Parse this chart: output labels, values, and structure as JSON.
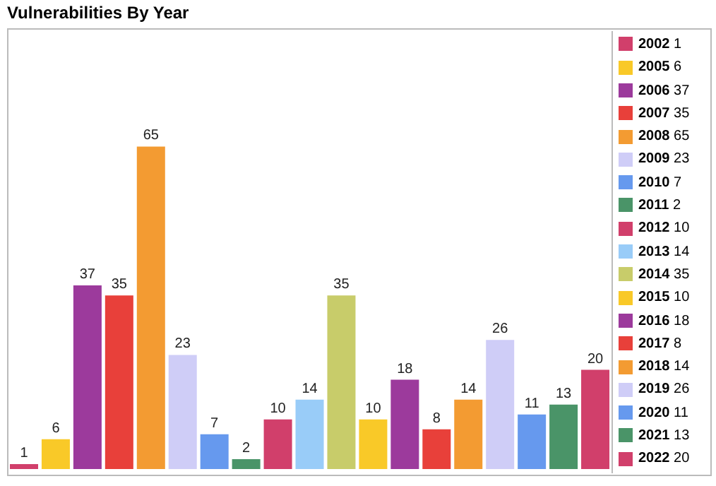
{
  "chart_data": {
    "type": "bar",
    "title": "Vulnerabilities By Year",
    "stacked": true,
    "data_labels": true,
    "legend": "right",
    "categories": [
      null,
      null,
      null,
      null,
      null,
      null,
      null,
      null,
      null,
      null,
      null,
      null,
      null,
      null,
      null,
      null,
      null,
      null,
      null
    ],
    "series": [
      {
        "name": "2002 1",
        "color": "#d13f6b",
        "values": [
          1,
          null,
          null,
          null,
          null,
          null,
          null,
          null,
          null,
          null,
          null,
          null,
          null,
          null,
          null,
          null,
          null,
          null,
          null
        ]
      },
      {
        "name": "2005 6",
        "color": "#f9c928",
        "values": [
          null,
          6,
          null,
          null,
          null,
          null,
          null,
          null,
          null,
          null,
          null,
          null,
          null,
          null,
          null,
          null,
          null,
          null,
          null
        ]
      },
      {
        "name": "2006 37",
        "color": "#9c3a9c",
        "values": [
          null,
          null,
          37,
          null,
          null,
          null,
          null,
          null,
          null,
          null,
          null,
          null,
          null,
          null,
          null,
          null,
          null,
          null,
          null
        ]
      },
      {
        "name": "2007 35",
        "color": "#e8403a",
        "values": [
          null,
          null,
          null,
          35,
          null,
          null,
          null,
          null,
          null,
          null,
          null,
          null,
          null,
          null,
          null,
          null,
          null,
          null,
          null
        ]
      },
      {
        "name": "2008 65",
        "color": "#f39b32",
        "values": [
          null,
          null,
          null,
          null,
          65,
          null,
          null,
          null,
          null,
          null,
          null,
          null,
          null,
          null,
          null,
          null,
          null,
          null,
          null
        ]
      },
      {
        "name": "2009 23",
        "color": "#cfcdf7",
        "values": [
          null,
          null,
          null,
          null,
          null,
          23,
          null,
          null,
          null,
          null,
          null,
          null,
          null,
          null,
          null,
          null,
          null,
          null,
          null
        ]
      },
      {
        "name": "2010 7",
        "color": "#6699ee",
        "values": [
          null,
          null,
          null,
          null,
          null,
          null,
          7,
          null,
          null,
          null,
          null,
          null,
          null,
          null,
          null,
          null,
          null,
          null,
          null
        ]
      },
      {
        "name": "2011 2",
        "color": "#4a9468",
        "values": [
          null,
          null,
          null,
          null,
          null,
          null,
          null,
          2,
          null,
          null,
          null,
          null,
          null,
          null,
          null,
          null,
          null,
          null,
          null
        ]
      },
      {
        "name": "2012 10",
        "color": "#d13f6b",
        "values": [
          null,
          null,
          null,
          null,
          null,
          null,
          null,
          null,
          10,
          null,
          null,
          null,
          null,
          null,
          null,
          null,
          null,
          null,
          null
        ]
      },
      {
        "name": "2013 14",
        "color": "#99ccf8",
        "values": [
          null,
          null,
          null,
          null,
          null,
          null,
          null,
          null,
          null,
          14,
          null,
          null,
          null,
          null,
          null,
          null,
          null,
          null,
          null
        ]
      },
      {
        "name": "2014 35",
        "color": "#c8cc6a",
        "values": [
          null,
          null,
          null,
          null,
          null,
          null,
          null,
          null,
          null,
          null,
          35,
          null,
          null,
          null,
          null,
          null,
          null,
          null,
          null
        ]
      },
      {
        "name": "2015 10",
        "color": "#f9c928",
        "values": [
          null,
          null,
          null,
          null,
          null,
          null,
          null,
          null,
          null,
          null,
          null,
          10,
          null,
          null,
          null,
          null,
          null,
          null,
          null
        ]
      },
      {
        "name": "2016 18",
        "color": "#9c3a9c",
        "values": [
          null,
          null,
          null,
          null,
          null,
          null,
          null,
          null,
          null,
          null,
          null,
          null,
          18,
          null,
          null,
          null,
          null,
          null,
          null
        ]
      },
      {
        "name": "2017 8",
        "color": "#e8403a",
        "values": [
          null,
          null,
          null,
          null,
          null,
          null,
          null,
          null,
          null,
          null,
          null,
          null,
          null,
          8,
          null,
          null,
          null,
          null,
          null
        ]
      },
      {
        "name": "2018 14",
        "color": "#f39b32",
        "values": [
          null,
          null,
          null,
          null,
          null,
          null,
          null,
          null,
          null,
          null,
          null,
          null,
          null,
          null,
          14,
          null,
          null,
          null,
          null
        ]
      },
      {
        "name": "2019 26",
        "color": "#cfcdf7",
        "values": [
          null,
          null,
          null,
          null,
          null,
          null,
          null,
          null,
          null,
          null,
          null,
          null,
          null,
          null,
          null,
          26,
          null,
          null,
          null
        ]
      },
      {
        "name": "2020 11",
        "color": "#6699ee",
        "values": [
          null,
          null,
          null,
          null,
          null,
          null,
          null,
          null,
          null,
          null,
          null,
          null,
          null,
          null,
          null,
          null,
          11,
          null,
          null
        ]
      },
      {
        "name": "2021 13",
        "color": "#4a9468",
        "values": [
          null,
          null,
          null,
          null,
          null,
          null,
          null,
          null,
          null,
          null,
          null,
          null,
          null,
          null,
          null,
          null,
          null,
          13,
          null
        ]
      },
      {
        "name": "2022 20",
        "color": "#d13f6b",
        "values": [
          null,
          null,
          null,
          null,
          null,
          null,
          null,
          null,
          null,
          null,
          null,
          null,
          null,
          null,
          null,
          null,
          null,
          null,
          20
        ]
      }
    ]
  }
}
